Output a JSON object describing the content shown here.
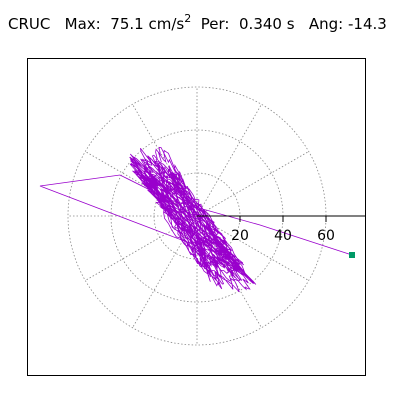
{
  "header": {
    "station": "CRUC",
    "max_label": "Max:",
    "max_value": "75.1",
    "max_unit": "cm/s",
    "max_unit_exp": "2",
    "per_label": "Per:",
    "per_value": "0.340 s",
    "ang_label": "Ang:",
    "ang_value": "-14.3"
  },
  "plot": {
    "trace_color": "#9900cc",
    "grid_color": "#888888",
    "marker_color": "#009966",
    "tick_labels": [
      "20",
      "40",
      "60"
    ],
    "angle_deg": -14.3
  }
}
